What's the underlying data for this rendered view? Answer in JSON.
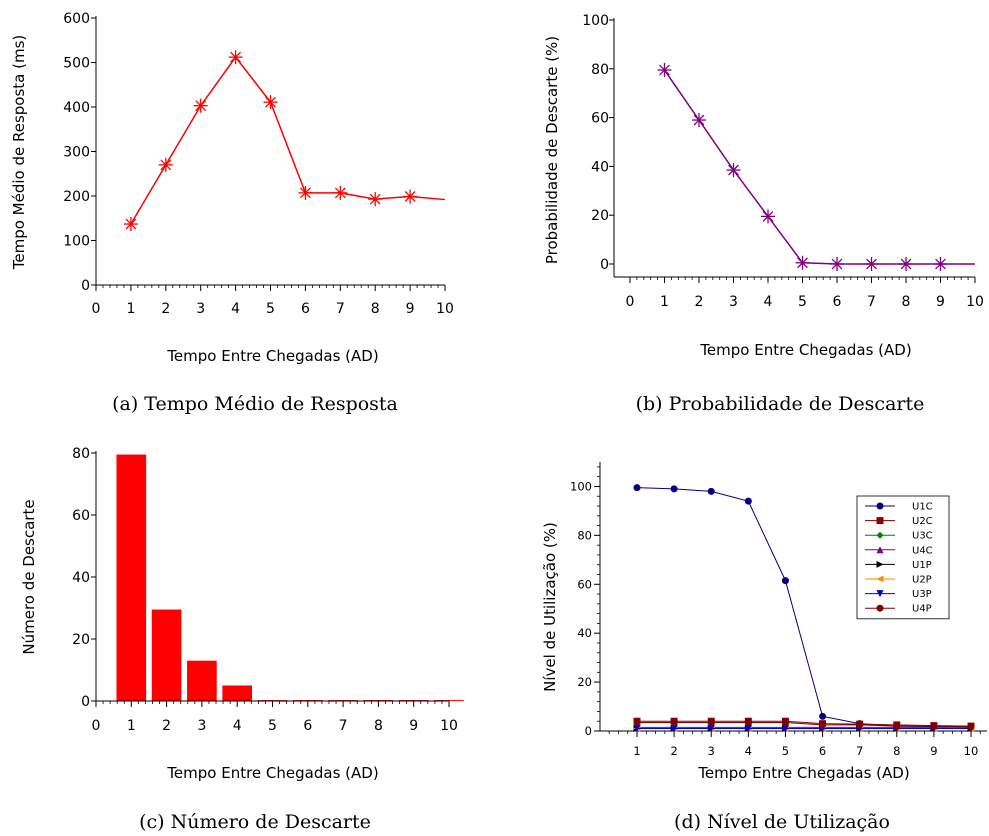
{
  "chart_data": [
    {
      "type": "line",
      "caption": "(a)  Tempo Médio de Resposta",
      "xlabel": "Tempo Entre Chegadas (AD)",
      "ylabel": "Tempo Médio de Resposta (ms)",
      "xlim": [
        0,
        10
      ],
      "ylim": [
        0,
        600
      ],
      "xticks": [
        0,
        1,
        2,
        3,
        4,
        5,
        6,
        7,
        8,
        9,
        10
      ],
      "yticks": [
        0,
        100,
        200,
        300,
        400,
        500,
        600
      ],
      "marker": "asterisk",
      "color": "#ff0000",
      "x": [
        1,
        2,
        3,
        4,
        5,
        6,
        7,
        8,
        9,
        10
      ],
      "y": [
        137,
        270,
        403,
        512,
        411,
        207,
        207,
        193,
        199,
        192
      ],
      "marker_x": [
        1,
        2,
        3,
        4,
        5,
        6,
        7,
        8,
        9
      ]
    },
    {
      "type": "line",
      "caption": "(b)  Probabilidade de Descarte",
      "xlabel": "Tempo Entre Chegadas (AD)",
      "ylabel": "Probabilidade de Descarte (%)",
      "xlim": [
        0,
        10
      ],
      "ylim": [
        0,
        100
      ],
      "xticks": [
        0,
        1,
        2,
        3,
        4,
        5,
        6,
        7,
        8,
        9,
        10
      ],
      "yticks": [
        0,
        20,
        40,
        60,
        80,
        100
      ],
      "marker": "asterisk",
      "color": "#800080",
      "x": [
        1,
        2,
        3,
        4,
        5,
        6,
        7,
        8,
        9,
        10
      ],
      "y": [
        79.5,
        59,
        38.5,
        19.5,
        0.5,
        0,
        0,
        0,
        0,
        0
      ],
      "marker_x": [
        1,
        2,
        3,
        4,
        5,
        6,
        7,
        8,
        9
      ]
    },
    {
      "type": "bar",
      "caption": "(c)  Número de Descarte",
      "xlabel": "Tempo Entre Chegadas (AD)",
      "ylabel": "Número de Descarte",
      "xlim": [
        0,
        10
      ],
      "ylim": [
        0,
        80
      ],
      "xticks": [
        0,
        1,
        2,
        3,
        4,
        5,
        6,
        7,
        8,
        9,
        10
      ],
      "yticks": [
        0,
        20,
        40,
        60,
        80
      ],
      "color": "#ff0000",
      "categories": [
        "1",
        "2",
        "3",
        "4",
        "5",
        "6",
        "7",
        "8",
        "9",
        "10"
      ],
      "values": [
        79.5,
        29.5,
        13,
        5,
        0.3,
        0.3,
        0.3,
        0.3,
        0.3,
        0.3
      ]
    },
    {
      "type": "line",
      "caption": "(d)  Nível de Utilização",
      "xlabel": "Tempo Entre Chegadas (AD)",
      "ylabel": "Nível de Utilização (%)",
      "xlim": [
        0,
        10.5
      ],
      "ylim": [
        0,
        110
      ],
      "xticks": [
        1,
        2,
        3,
        4,
        5,
        6,
        7,
        8,
        9,
        10
      ],
      "yticks": [
        0,
        20,
        40,
        60,
        80,
        100
      ],
      "legend_position": "top-right",
      "x": [
        1,
        2,
        3,
        4,
        5,
        6,
        7,
        8,
        9,
        10
      ],
      "series": [
        {
          "name": "U1C",
          "color": "#000080",
          "marker": "circle",
          "values": [
            99.5,
            99,
            98,
            94,
            61.5,
            6,
            3,
            2,
            1.8,
            1.5
          ]
        },
        {
          "name": "U2C",
          "color": "#8b0000",
          "marker": "square",
          "values": [
            4,
            4,
            4,
            4,
            4,
            3,
            2.8,
            2.5,
            2.2,
            2
          ]
        },
        {
          "name": "U3C",
          "color": "#008000",
          "marker": "diamond",
          "values": [
            1,
            1,
            1,
            1,
            1,
            1,
            1,
            1,
            1,
            1
          ]
        },
        {
          "name": "U4C",
          "color": "#800080",
          "marker": "triangle-up",
          "values": [
            1.5,
            1.5,
            1.5,
            1.5,
            1.5,
            1.5,
            1.5,
            1.5,
            1.5,
            1.5
          ]
        },
        {
          "name": "U1P",
          "color": "#000000",
          "marker": "triangle-right",
          "values": [
            1,
            1,
            1,
            1,
            1,
            1,
            1,
            1,
            1,
            1
          ]
        },
        {
          "name": "U2P",
          "color": "#ff8c00",
          "marker": "triangle-left",
          "values": [
            1,
            1,
            1,
            1,
            1,
            1,
            1,
            1,
            1,
            1
          ]
        },
        {
          "name": "U3P",
          "color": "#0000cd",
          "marker": "triangle-down",
          "values": [
            1,
            1,
            1,
            1,
            1,
            1,
            1,
            1,
            1,
            1
          ]
        },
        {
          "name": "U4P",
          "color": "#800000",
          "marker": "circle",
          "values": [
            3.5,
            3.5,
            3.5,
            3.5,
            3.5,
            2.5,
            2.5,
            2,
            2,
            1.8
          ]
        }
      ]
    }
  ]
}
